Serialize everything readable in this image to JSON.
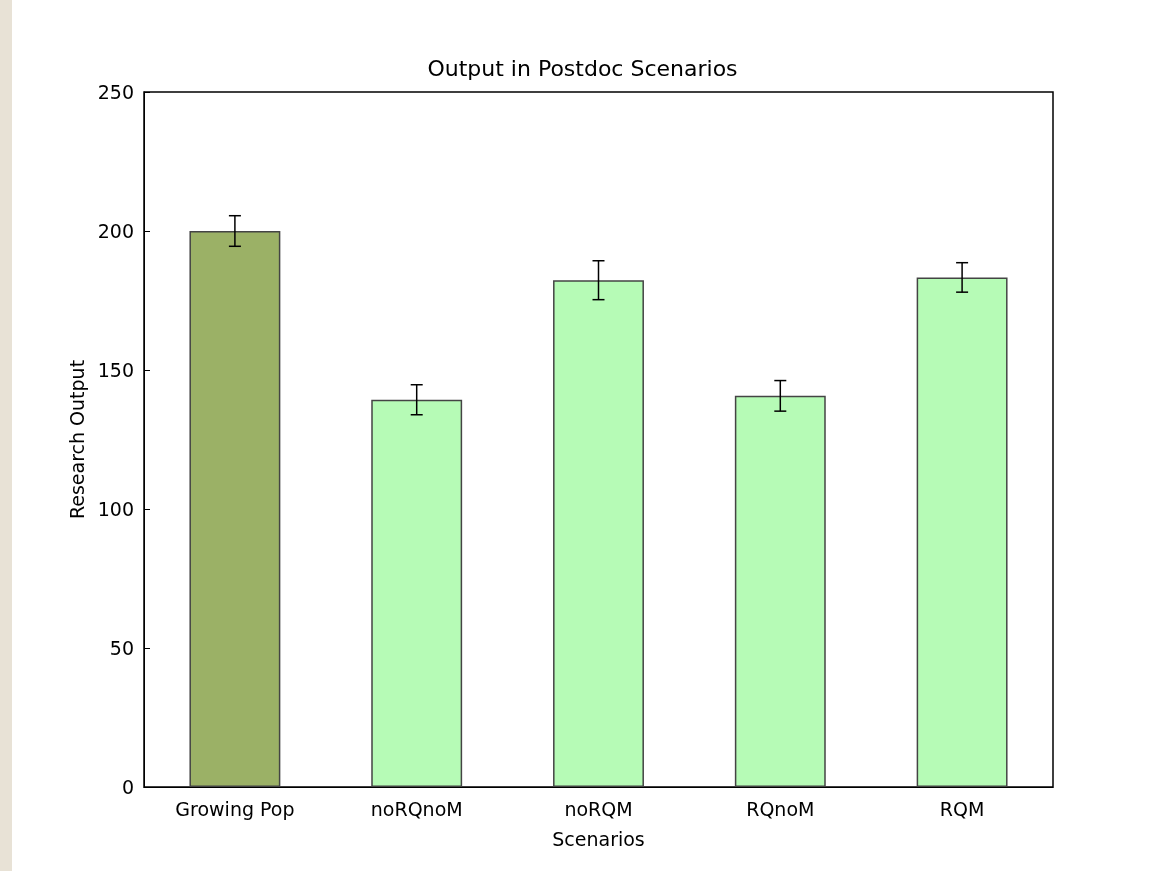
{
  "chart_data": {
    "type": "bar",
    "title": "Output in Postdoc Scenarios",
    "xlabel": "Scenarios",
    "ylabel": "Research Output",
    "categories": [
      "Growing Pop",
      "noRQnoM",
      "noRQM",
      "RQnoM",
      "RQM"
    ],
    "values": [
      200,
      139.3,
      182.3,
      140.7,
      183.3
    ],
    "errors": [
      5.5,
      5.4,
      7,
      5.5,
      5.3
    ],
    "colors": [
      "#9bb166",
      "#b6fbb6",
      "#b6fbb6",
      "#b6fbb6",
      "#b6fbb6"
    ],
    "ylim": [
      0,
      250
    ],
    "yticks": [
      0,
      50,
      100,
      150,
      200,
      250
    ],
    "grid": false
  }
}
